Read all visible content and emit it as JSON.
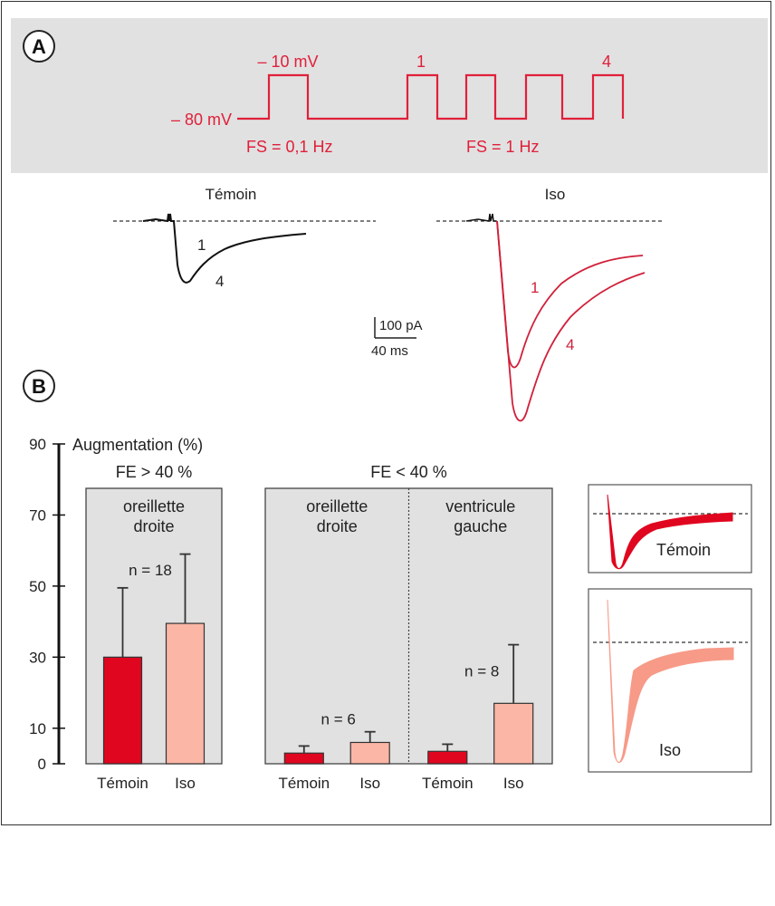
{
  "panel_a": {
    "badge": "A",
    "protocol": {
      "holding_label": "– 80 mV",
      "step_label": "– 10 mV",
      "pulse_first_label": "1",
      "pulse_last_label": "4",
      "freq_slow_label": "FS = 0,1 Hz",
      "freq_fast_label": "FS = 1 Hz"
    },
    "traces": {
      "control_title": "Témoin",
      "iso_title": "Iso",
      "trace1_label": "1",
      "trace4_label": "4",
      "scale_current": "100 pA",
      "scale_time": "40 ms"
    }
  },
  "panel_b": {
    "badge": "B",
    "inset": {
      "control_label": "Témoin",
      "iso_label": "Iso"
    }
  },
  "colors": {
    "protocol_red": "#e0203a",
    "control_bar": "#e0061f",
    "iso_bar": "#fbb6a5",
    "group_bg": "#e1e1e1"
  },
  "chart_data": {
    "type": "bar",
    "title": "",
    "ylabel": "Augmentation (%)",
    "xlabel": "",
    "ylim": [
      0,
      90
    ],
    "yticks": [
      0,
      10,
      30,
      50,
      70,
      90
    ],
    "grid": false,
    "groups": [
      {
        "header": "FE > 40 %",
        "panels": [
          {
            "label_line1": "oreillette",
            "label_line2": "droite",
            "n_label": "n = 18",
            "categories": [
              "Témoin",
              "Iso"
            ],
            "values": [
              30,
              39.5
            ],
            "error_upper": [
              49.5,
              59
            ]
          }
        ]
      },
      {
        "header": "FE < 40 %",
        "panels": [
          {
            "label_line1": "oreillette",
            "label_line2": "droite",
            "n_label": "n = 6",
            "categories": [
              "Témoin",
              "Iso"
            ],
            "values": [
              3,
              6
            ],
            "error_upper": [
              5,
              9
            ]
          },
          {
            "label_line1": "ventricule",
            "label_line2": "gauche",
            "n_label": "n = 8",
            "categories": [
              "Témoin",
              "Iso"
            ],
            "values": [
              3.5,
              17
            ],
            "error_upper": [
              5.5,
              33.5
            ]
          }
        ]
      }
    ]
  }
}
